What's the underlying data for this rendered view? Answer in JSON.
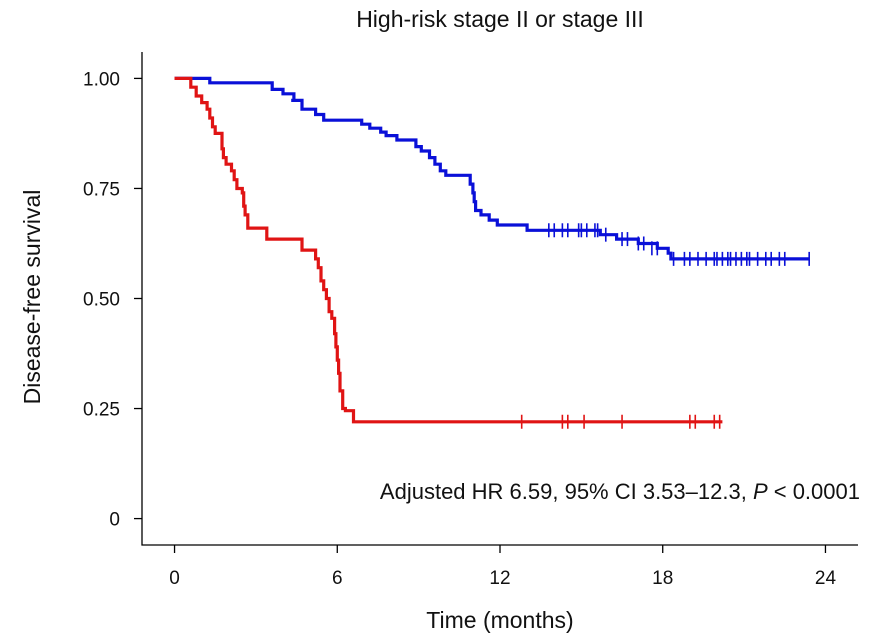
{
  "chart_data": {
    "type": "line",
    "subtype": "kaplan-meier step survival curve",
    "title": "High-risk stage II or stage III",
    "xlabel": "Time (months)",
    "ylabel": "Disease-free survival",
    "xlim": [
      -1.2,
      25.2
    ],
    "ylim": [
      -0.06,
      1.06
    ],
    "x_ticks": [
      0,
      6,
      12,
      18,
      24
    ],
    "x_tick_labels": [
      "0",
      "6",
      "12",
      "18",
      "24"
    ],
    "y_ticks": [
      0,
      0.25,
      0.5,
      0.75,
      1.0
    ],
    "y_tick_labels": [
      "0",
      "0.25",
      "0.50",
      "0.75",
      "1.00"
    ],
    "grid": false,
    "legend": "none",
    "annotation": {
      "prefix": "Adjusted HR 6.59, 95% CI 3.53–12.3, ",
      "p_symbol": "P",
      "suffix": " < 0.0001"
    },
    "series": [
      {
        "color": "#0a10d8",
        "steps": [
          [
            0,
            1.0
          ],
          [
            0.25,
            1.0
          ],
          [
            0.35,
            1.0
          ],
          [
            0.5,
            1.0
          ],
          [
            0.7,
            1.0
          ],
          [
            1.3,
            0.99
          ],
          [
            3.6,
            0.975
          ],
          [
            4.0,
            0.965
          ],
          [
            4.4,
            0.95
          ],
          [
            4.3,
            0.95
          ],
          [
            4.7,
            0.93
          ],
          [
            5.0,
            0.93
          ],
          [
            5.2,
            0.918
          ],
          [
            5.3,
            0.918
          ],
          [
            5.5,
            0.905
          ],
          [
            6.0,
            0.905
          ],
          [
            6.9,
            0.896
          ],
          [
            7.2,
            0.887
          ],
          [
            7.6,
            0.878
          ],
          [
            7.8,
            0.87
          ],
          [
            8.2,
            0.86
          ],
          [
            8.9,
            0.845
          ],
          [
            9.1,
            0.835
          ],
          [
            9.4,
            0.82
          ],
          [
            9.6,
            0.805
          ],
          [
            9.8,
            0.79
          ],
          [
            10.0,
            0.78
          ],
          [
            10.9,
            0.76
          ],
          [
            11.0,
            0.74
          ],
          [
            11.05,
            0.72
          ],
          [
            11.1,
            0.7
          ],
          [
            11.3,
            0.69
          ],
          [
            11.6,
            0.678
          ],
          [
            11.9,
            0.667
          ],
          [
            13.0,
            0.655
          ],
          [
            15.7,
            0.645
          ],
          [
            16.3,
            0.635
          ],
          [
            17.1,
            0.625
          ],
          [
            17.8,
            0.614
          ],
          [
            18.0,
            0.614
          ],
          [
            18.2,
            0.603
          ],
          [
            18.3,
            0.59
          ],
          [
            23.4,
            0.59
          ]
        ],
        "censor_times": [
          13.8,
          14.0,
          14.3,
          14.5,
          14.9,
          15.0,
          15.2,
          15.5,
          15.6,
          15.9,
          16.5,
          16.7,
          17.1,
          17.3,
          17.6,
          17.8,
          18.4,
          18.8,
          19.0,
          19.3,
          19.6,
          19.9,
          20.0,
          20.2,
          20.4,
          20.5,
          20.7,
          20.9,
          21.1,
          21.2,
          21.5,
          21.8,
          22.0,
          22.3,
          22.5,
          23.4
        ],
        "censor_values": [
          0.655,
          0.655,
          0.655,
          0.655,
          0.655,
          0.655,
          0.655,
          0.655,
          0.655,
          0.645,
          0.635,
          0.635,
          0.625,
          0.625,
          0.614,
          0.614,
          0.59,
          0.59,
          0.59,
          0.59,
          0.59,
          0.59,
          0.59,
          0.59,
          0.59,
          0.59,
          0.59,
          0.59,
          0.59,
          0.59,
          0.59,
          0.59,
          0.59,
          0.59,
          0.59,
          0.59
        ]
      },
      {
        "color": "#e01414",
        "steps": [
          [
            0,
            1.0
          ],
          [
            0.5,
            1.0
          ],
          [
            0.6,
            0.98
          ],
          [
            0.8,
            0.96
          ],
          [
            1.0,
            0.945
          ],
          [
            1.2,
            0.93
          ],
          [
            1.3,
            0.91
          ],
          [
            1.4,
            0.89
          ],
          [
            1.5,
            0.875
          ],
          [
            1.7,
            0.875
          ],
          [
            1.75,
            0.84
          ],
          [
            1.8,
            0.82
          ],
          [
            1.9,
            0.805
          ],
          [
            2.1,
            0.79
          ],
          [
            2.2,
            0.77
          ],
          [
            2.3,
            0.75
          ],
          [
            2.5,
            0.74
          ],
          [
            2.5,
            0.74
          ],
          [
            2.55,
            0.71
          ],
          [
            2.6,
            0.69
          ],
          [
            2.7,
            0.66
          ],
          [
            3.4,
            0.655
          ],
          [
            3.4,
            0.635
          ],
          [
            4.6,
            0.635
          ],
          [
            4.7,
            0.61
          ],
          [
            5.0,
            0.61
          ],
          [
            5.2,
            0.59
          ],
          [
            5.3,
            0.57
          ],
          [
            5.4,
            0.54
          ],
          [
            5.5,
            0.52
          ],
          [
            5.6,
            0.5
          ],
          [
            5.7,
            0.47
          ],
          [
            5.8,
            0.455
          ],
          [
            5.9,
            0.42
          ],
          [
            5.95,
            0.39
          ],
          [
            6.0,
            0.36
          ],
          [
            6.05,
            0.33
          ],
          [
            6.1,
            0.29
          ],
          [
            6.2,
            0.25
          ],
          [
            6.3,
            0.245
          ],
          [
            6.5,
            0.245
          ],
          [
            6.6,
            0.22
          ],
          [
            20.2,
            0.22
          ]
        ],
        "censor_times": [
          12.8,
          14.3,
          14.5,
          15.1,
          16.5,
          19.0,
          19.2,
          19.9,
          20.1
        ],
        "censor_values": [
          0.22,
          0.22,
          0.22,
          0.22,
          0.22,
          0.22,
          0.22,
          0.22,
          0.22
        ]
      }
    ]
  }
}
